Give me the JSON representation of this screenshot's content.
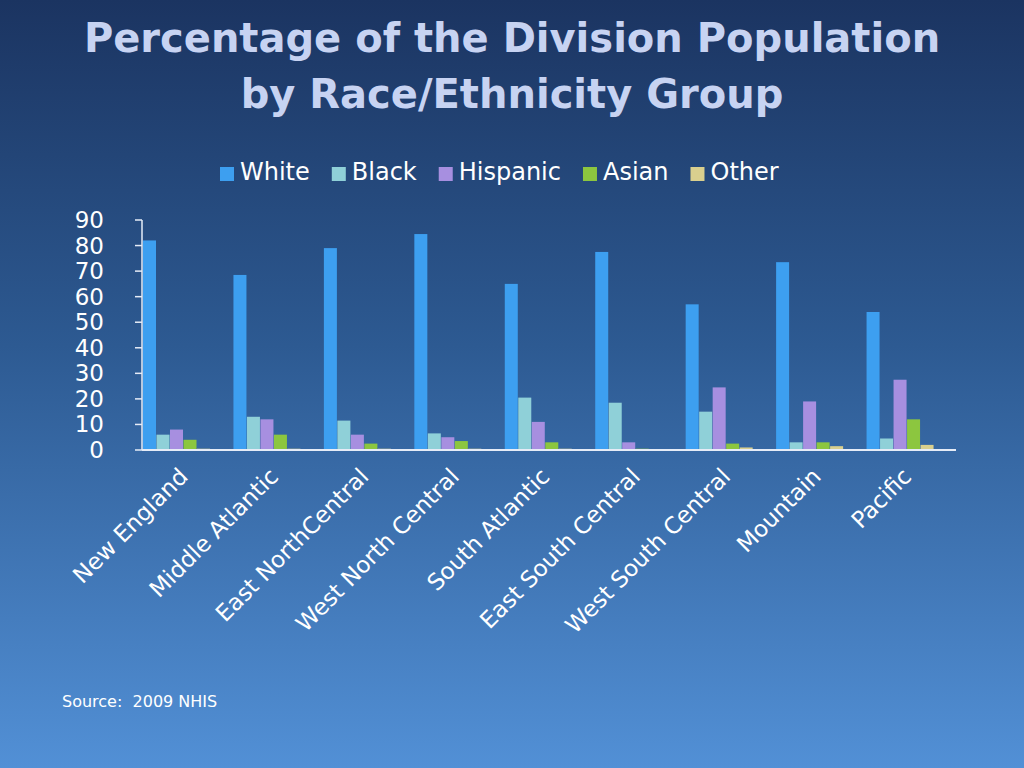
{
  "chart_data": {
    "type": "bar",
    "title": "Percentage of the Division Population by Race/Ethnicity Group",
    "source": "Source:  2009 NHIS",
    "categories": [
      "New England",
      "Middle Atlantic",
      "East NorthCentral",
      "West North Central",
      "South Atlantic",
      "East South Central",
      "West South Central",
      "Mountain",
      "Pacific"
    ],
    "series": [
      {
        "name": "White",
        "color": "#3d9ff0",
        "values": [
          82,
          68.5,
          79,
          84.5,
          65,
          77.5,
          57,
          73.5,
          54
        ]
      },
      {
        "name": "Black",
        "color": "#8fd0d8",
        "values": [
          6,
          13,
          11.5,
          6.5,
          20.5,
          18.5,
          15,
          3,
          4.5
        ]
      },
      {
        "name": "Hispanic",
        "color": "#a78fe0",
        "values": [
          8,
          12,
          6,
          5,
          11,
          3,
          24.5,
          19,
          27.5
        ]
      },
      {
        "name": "Asian",
        "color": "#8cc63f",
        "values": [
          4,
          6,
          2.5,
          3.5,
          3,
          0.5,
          2.5,
          3,
          12
        ]
      },
      {
        "name": "Other",
        "color": "#d9cf8e",
        "values": [
          0.5,
          0.5,
          0.5,
          0.5,
          0.5,
          0.3,
          1,
          1.5,
          2
        ]
      }
    ],
    "ylim": [
      0,
      90
    ],
    "yticks": [
      0,
      10,
      20,
      30,
      40,
      50,
      60,
      70,
      80,
      90
    ],
    "grid": false,
    "legend": "top"
  }
}
